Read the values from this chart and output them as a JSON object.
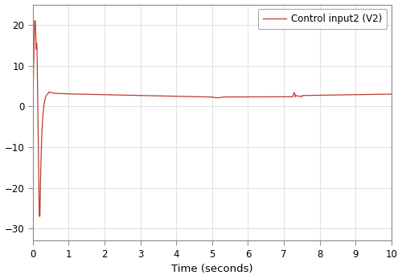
{
  "title": "",
  "xlabel": "Time (seconds)",
  "ylabel": "",
  "legend_label": "Control input2 (V2)",
  "line_color": "#c0392b",
  "xlim": [
    0,
    10
  ],
  "ylim": [
    -33,
    25
  ],
  "yticks": [
    -30,
    -20,
    -10,
    0,
    10,
    20
  ],
  "xticks": [
    0,
    1,
    2,
    3,
    4,
    5,
    6,
    7,
    8,
    9,
    10
  ],
  "background_color": "#ffffff",
  "grid_color": "#e0e0e0",
  "figsize": [
    5.0,
    3.47
  ],
  "dpi": 100
}
